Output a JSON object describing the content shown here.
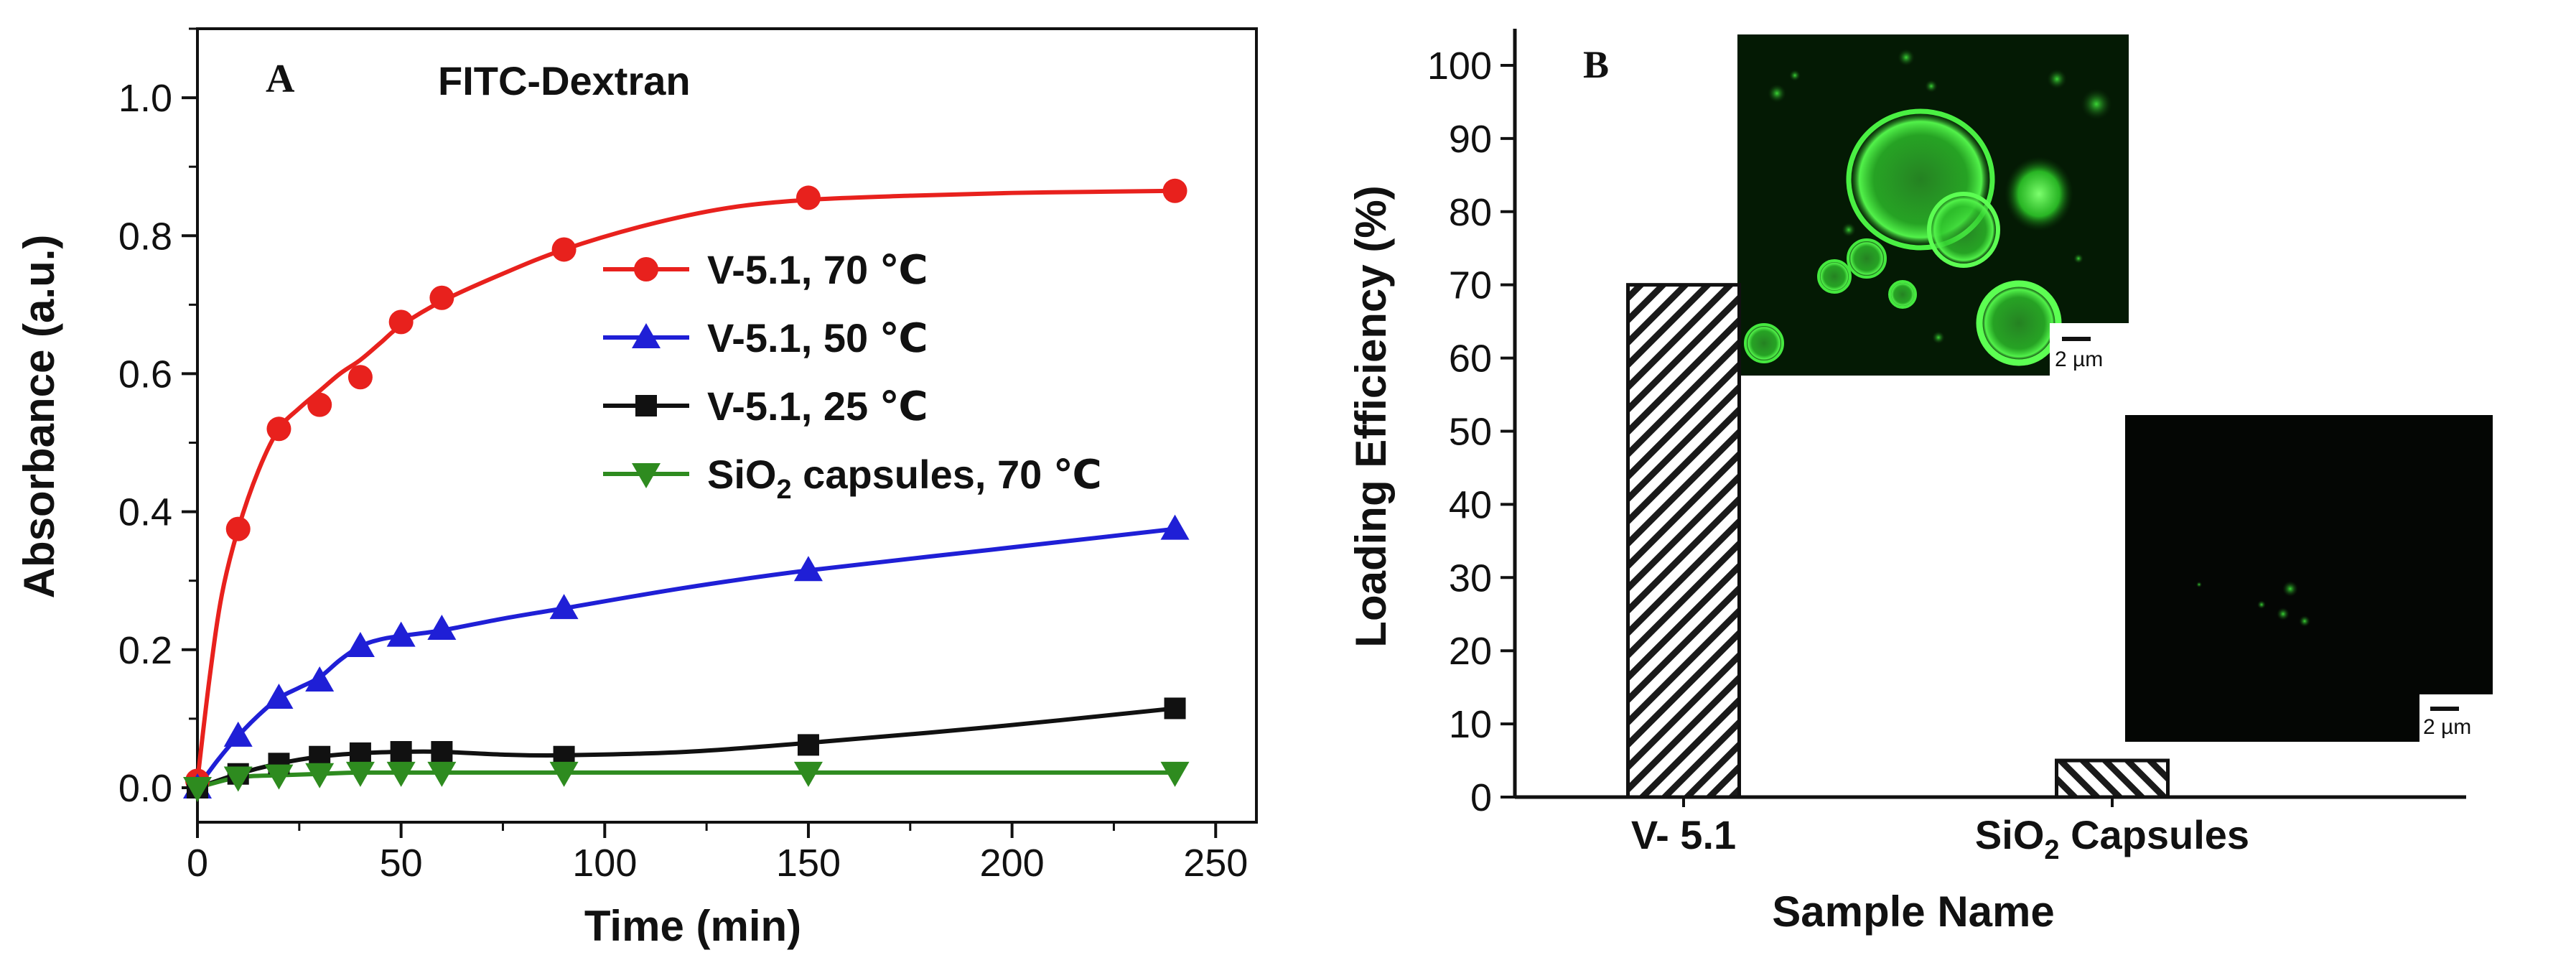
{
  "chart_data": [
    {
      "panel": "A",
      "type": "line",
      "title": "FITC-Dextran",
      "xlabel": "Time (min)",
      "ylabel": "Absorbance (a.u.)",
      "xlim": [
        0,
        260
      ],
      "ylim": [
        -0.05,
        1.1
      ],
      "xticks": [
        "0",
        "50",
        "100",
        "150",
        "200",
        "250"
      ],
      "xtick_values": [
        0,
        50,
        100,
        150,
        200,
        250
      ],
      "yticks": [
        "0.0",
        "0.2",
        "0.4",
        "0.6",
        "0.8",
        "1.0"
      ],
      "ytick_values": [
        0,
        0.2,
        0.4,
        0.6,
        0.8,
        1.0
      ],
      "legend_position": "center-right",
      "series": [
        {
          "name": "V-5.1, 70 ℃",
          "label_main": "V-5.1, 70 ℃",
          "label_sub": "",
          "label_rest": "",
          "color": "#e8211d",
          "marker": "circle",
          "x": [
            0,
            10,
            20,
            30,
            40,
            50,
            60,
            90,
            150,
            240
          ],
          "y": [
            0.01,
            0.375,
            0.52,
            0.555,
            0.595,
            0.675,
            0.71,
            0.78,
            0.855,
            0.865
          ],
          "curve_x": [
            0,
            3,
            6,
            10,
            15,
            20,
            25,
            30,
            35,
            40,
            45,
            50,
            60,
            75,
            90,
            110,
            130,
            150,
            175,
            200,
            225,
            240
          ],
          "curve_y": [
            0.01,
            0.16,
            0.28,
            0.375,
            0.46,
            0.52,
            0.55,
            0.575,
            0.6,
            0.62,
            0.645,
            0.67,
            0.705,
            0.745,
            0.78,
            0.815,
            0.84,
            0.852,
            0.858,
            0.862,
            0.864,
            0.865
          ]
        },
        {
          "name": "V-5.1, 50 ℃",
          "label_main": "V-5.1, 50 ℃",
          "label_sub": "",
          "label_rest": "",
          "color": "#1f1fd6",
          "marker": "triangle-up",
          "x": [
            0,
            10,
            20,
            30,
            40,
            50,
            60,
            90,
            150,
            240
          ],
          "y": [
            0.0,
            0.075,
            0.13,
            0.155,
            0.205,
            0.22,
            0.23,
            0.26,
            0.315,
            0.375
          ],
          "curve_x": [
            0,
            5,
            10,
            15,
            20,
            25,
            30,
            35,
            40,
            45,
            50,
            60,
            75,
            90,
            120,
            150,
            195,
            240
          ],
          "curve_y": [
            0.0,
            0.04,
            0.075,
            0.105,
            0.13,
            0.145,
            0.16,
            0.185,
            0.205,
            0.215,
            0.22,
            0.228,
            0.245,
            0.26,
            0.29,
            0.315,
            0.345,
            0.375
          ]
        },
        {
          "name": "V-5.1, 25 ℃",
          "label_main": "V-5.1, 25 ℃",
          "label_sub": "",
          "label_rest": "",
          "color": "#111111",
          "marker": "square",
          "x": [
            0,
            10,
            20,
            30,
            40,
            50,
            60,
            90,
            150,
            240
          ],
          "y": [
            0.0,
            0.02,
            0.035,
            0.045,
            0.05,
            0.052,
            0.052,
            0.045,
            0.062,
            0.115
          ],
          "curve_x": [
            0,
            10,
            20,
            30,
            40,
            50,
            60,
            75,
            90,
            120,
            150,
            195,
            240
          ],
          "curve_y": [
            0.0,
            0.02,
            0.035,
            0.045,
            0.05,
            0.052,
            0.052,
            0.048,
            0.047,
            0.052,
            0.065,
            0.088,
            0.115
          ]
        },
        {
          "name": "SiO2 capsules, 70 ℃",
          "label_main": "SiO",
          "label_sub": "2",
          "label_rest": " capsules, 70 ℃",
          "color": "#2e8b1f",
          "marker": "triangle-down",
          "x": [
            0,
            10,
            20,
            30,
            40,
            50,
            60,
            90,
            150,
            240
          ],
          "y": [
            0.0,
            0.015,
            0.018,
            0.02,
            0.022,
            0.022,
            0.022,
            0.022,
            0.022,
            0.022
          ],
          "curve_x": [
            0,
            10,
            20,
            30,
            40,
            60,
            90,
            150,
            240
          ],
          "curve_y": [
            0.0,
            0.015,
            0.018,
            0.02,
            0.022,
            0.022,
            0.022,
            0.022,
            0.022
          ]
        }
      ]
    },
    {
      "panel": "B",
      "type": "bar",
      "xlabel": "Sample Name",
      "ylabel": "Loading Efficiency (%)",
      "ylim": [
        0,
        105
      ],
      "yticks": [
        "0",
        "10",
        "20",
        "30",
        "40",
        "50",
        "60",
        "70",
        "80",
        "90",
        "100"
      ],
      "ytick_values": [
        0,
        10,
        20,
        30,
        40,
        50,
        60,
        70,
        80,
        90,
        100
      ],
      "categories": [
        {
          "main": "V- 5.1",
          "sub": "",
          "rest": ""
        },
        {
          "main": "SiO",
          "sub": "2",
          "rest": " Capsules"
        }
      ],
      "values": [
        70,
        5
      ],
      "hatch": [
        "forward-diagonal",
        "backward-diagonal"
      ],
      "insets": [
        {
          "name": "microscopy-inset-v51",
          "scale_bar": "2 µm",
          "near": "bar 1"
        },
        {
          "name": "microscopy-inset-sio2",
          "scale_bar": "2 µm",
          "near": "bar 2"
        }
      ]
    }
  ]
}
